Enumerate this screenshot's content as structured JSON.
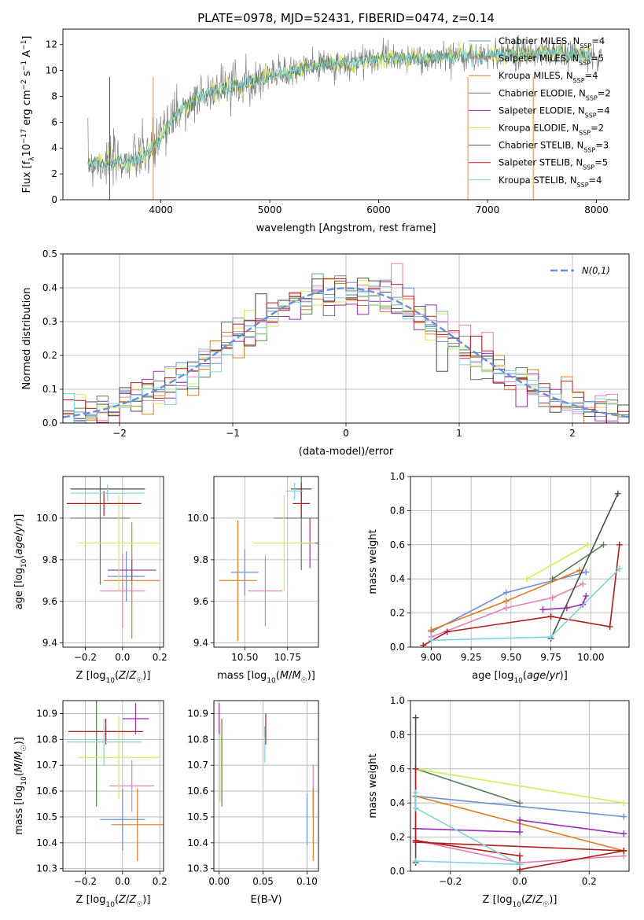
{
  "colors": {
    "Chabrier MILES": "#6a90d6",
    "Salpeter MILES": "#e47fb9",
    "Kroupa MILES": "#e07b25",
    "Chabrier ELODIE": "#5a7f58",
    "Salpeter ELODIE": "#9b2fb3",
    "Kroupa ELODIE": "#d6ea5a",
    "Chabrier STELIB": "#4d4d4d",
    "Salpeter STELIB": "#b11d1d",
    "Kroupa STELIB": "#7fd3dc",
    "normal": "#6a90d6"
  },
  "chart_data": [
    {
      "id": "spectrum",
      "type": "line",
      "title": "PLATE=0978, MJD=52431, FIBERID=0474, z=0.14",
      "xlabel": "wavelength [Angstrom, rest frame]",
      "ylabel": "Flux [f_λ 10^-17 erg cm^-2 s^-1 A^-1]",
      "xlim": [
        3100,
        8300
      ],
      "ylim": [
        0,
        13.2
      ],
      "xticks": [
        4000,
        5000,
        6000,
        7000,
        8000
      ],
      "yticks": [
        0,
        2,
        4,
        6,
        8,
        10,
        12
      ],
      "grid": false,
      "legend": "upper right",
      "series": [
        {
          "name": "Chabrier MILES",
          "nssp": "4"
        },
        {
          "name": "Salpeter MILES",
          "nssp": "5"
        },
        {
          "name": "Kroupa MILES",
          "nssp": "4"
        },
        {
          "name": "Chabrier ELODIE",
          "nssp": "2"
        },
        {
          "name": "Salpeter ELODIE",
          "nssp": "4"
        },
        {
          "name": "Kroupa ELODIE",
          "nssp": "2"
        },
        {
          "name": "Chabrier STELIB",
          "nssp": "3"
        },
        {
          "name": "Salpeter STELIB",
          "nssp": "5"
        },
        {
          "name": "Kroupa STELIB",
          "nssp": "4"
        }
      ],
      "data_trend": {
        "wavelength": [
          3300,
          3500,
          3700,
          3850,
          4000,
          4100,
          4300,
          4500,
          4700,
          4900,
          5100,
          5300,
          5500,
          5700,
          5900,
          6100,
          6300,
          6500,
          6700,
          6900,
          7100,
          7300,
          7500,
          7700,
          7900,
          8050
        ],
        "flux": [
          2.8,
          2.9,
          3.0,
          3.4,
          4.8,
          6.2,
          7.8,
          8.4,
          8.8,
          9.3,
          9.7,
          10.1,
          10.5,
          10.6,
          10.8,
          10.9,
          10.9,
          11.0,
          11.1,
          11.1,
          11.2,
          11.2,
          11.4,
          11.3,
          11.2,
          11.0
        ]
      }
    },
    {
      "id": "residuals",
      "type": "line",
      "xlabel": "(data-model)/error",
      "ylabel": "Normed distribution",
      "xlim": [
        -2.5,
        2.5
      ],
      "ylim": [
        0,
        0.5
      ],
      "xticks": [
        -2,
        -1,
        0,
        1,
        2
      ],
      "yticks": [
        0.0,
        0.1,
        0.2,
        0.3,
        0.4,
        0.5
      ],
      "grid": true,
      "legend": "upper right",
      "normal_label": "N(0,1)",
      "bin_width": 0.1,
      "bin_start": -2.5
    },
    {
      "id": "age-vs-Z",
      "type": "scatter",
      "xlabel": "Z [log10(Z/Z☉)]",
      "ylabel": "age [log10(age/yr)]",
      "xlim": [
        -0.32,
        0.22
      ],
      "ylim": [
        9.38,
        10.2
      ],
      "xticks": [
        -0.2,
        0.0,
        0.2
      ],
      "yticks": [
        9.4,
        9.6,
        9.8,
        10.0
      ],
      "grid": true,
      "points": [
        {
          "name": "Chabrier MILES",
          "x": 0.02,
          "xerr": 0.1,
          "y": 9.72,
          "yerr": 0.12
        },
        {
          "name": "Salpeter MILES",
          "x": 0.0,
          "xerr": 0.12,
          "y": 9.65,
          "yerr": 0.18
        },
        {
          "name": "Kroupa MILES",
          "x": 0.05,
          "xerr": 0.15,
          "y": 9.7,
          "yerr": 0.28
        },
        {
          "name": "Chabrier ELODIE",
          "x": -0.12,
          "xerr": 0.16,
          "y": 10.0,
          "yerr": 0.32
        },
        {
          "name": "Salpeter ELODIE",
          "x": 0.05,
          "xerr": 0.13,
          "y": 9.75,
          "yerr": 0.05
        },
        {
          "name": "Kroupa ELODIE",
          "x": -0.02,
          "xerr": 0.22,
          "y": 9.88,
          "yerr": 0.23
        },
        {
          "name": "Chabrier STELIB",
          "x": -0.08,
          "xerr": 0.2,
          "y": 10.14,
          "yerr": 0.02
        },
        {
          "name": "Salpeter STELIB",
          "x": -0.1,
          "xerr": 0.2,
          "y": 10.07,
          "yerr": 0.06
        },
        {
          "name": "Kroupa STELIB",
          "x": -0.08,
          "xerr": 0.2,
          "y": 10.12,
          "yerr": 0.04
        }
      ]
    },
    {
      "id": "age-vs-mass",
      "type": "scatter",
      "xlabel": "mass [log10(M/M☉)]",
      "ylabel": "",
      "xlim": [
        10.32,
        10.93
      ],
      "ylim": [
        9.38,
        10.2
      ],
      "xticks": [
        10.5,
        10.75
      ],
      "yticks": [
        9.4,
        9.6,
        9.8,
        10.0
      ],
      "grid": true,
      "points": [
        {
          "name": "Chabrier MILES",
          "x": 10.5,
          "xerr": 0.08,
          "y": 9.74,
          "yerr": 0.11
        },
        {
          "name": "Salpeter MILES",
          "x": 10.62,
          "xerr": 0.1,
          "y": 9.65,
          "yerr": 0.17
        },
        {
          "name": "Kroupa MILES",
          "x": 10.46,
          "xerr": 0.11,
          "y": 9.7,
          "yerr": 0.29
        },
        {
          "name": "Chabrier ELODIE",
          "x": 10.83,
          "xerr": 0.16,
          "y": 10.0,
          "yerr": 0.25
        },
        {
          "name": "Salpeter ELODIE",
          "x": 10.88,
          "xerr": 0.05,
          "y": 9.88,
          "yerr": 0.12
        },
        {
          "name": "Kroupa ELODIE",
          "x": 10.73,
          "xerr": 0.18,
          "y": 9.88,
          "yerr": 0.23
        },
        {
          "name": "Chabrier STELIB",
          "x": 10.83,
          "xerr": 0.06,
          "y": 10.14,
          "yerr": 0.03
        },
        {
          "name": "Salpeter STELIB",
          "x": 10.83,
          "xerr": 0.05,
          "y": 10.07,
          "yerr": 0.07
        },
        {
          "name": "Kroupa STELIB",
          "x": 10.79,
          "xerr": 0.05,
          "y": 10.13,
          "yerr": 0.04
        }
      ]
    },
    {
      "id": "weight-vs-age",
      "type": "line",
      "xlabel": "age [log10(age/yr)]",
      "ylabel": "mass weight",
      "xlim": [
        8.87,
        10.24
      ],
      "ylim": [
        0,
        1.0
      ],
      "xticks": [
        9.0,
        9.25,
        9.5,
        9.75,
        10.0
      ],
      "yticks": [
        0.0,
        0.2,
        0.4,
        0.6,
        0.8,
        1.0
      ],
      "grid": true,
      "series": [
        {
          "name": "Chabrier MILES",
          "x": [
            9.0,
            9.47,
            9.97
          ],
          "y": [
            0.09,
            0.32,
            0.44
          ]
        },
        {
          "name": "Salpeter MILES",
          "x": [
            9.0,
            9.47,
            9.76,
            9.95
          ],
          "y": [
            0.06,
            0.23,
            0.29,
            0.37
          ]
        },
        {
          "name": "Kroupa MILES",
          "x": [
            9.0,
            9.47,
            9.93
          ],
          "y": [
            0.1,
            0.27,
            0.45
          ]
        },
        {
          "name": "Chabrier ELODIE",
          "x": [
            9.76,
            10.08
          ],
          "y": [
            0.4,
            0.6
          ]
        },
        {
          "name": "Salpeter ELODIE",
          "x": [
            9.7,
            9.85,
            9.95,
            9.97
          ],
          "y": [
            0.22,
            0.23,
            0.25,
            0.3
          ]
        },
        {
          "name": "Kroupa ELODIE",
          "x": [
            9.6,
            9.98
          ],
          "y": [
            0.4,
            0.6
          ]
        },
        {
          "name": "Chabrier STELIB",
          "x": [
            9.75,
            10.17
          ],
          "y": [
            0.05,
            0.9
          ]
        },
        {
          "name": "Salpeter STELIB",
          "x": [
            8.95,
            9.1,
            9.75,
            10.12,
            10.18
          ],
          "y": [
            0.01,
            0.09,
            0.18,
            0.12,
            0.6
          ]
        },
        {
          "name": "Kroupa STELIB",
          "x": [
            9.0,
            9.75,
            10.18
          ],
          "y": [
            0.04,
            0.06,
            0.46
          ]
        }
      ]
    },
    {
      "id": "mass-vs-Z",
      "type": "scatter",
      "xlabel": "Z [log10(Z/Z☉)]",
      "ylabel": "mass [log10(M/M☉)]",
      "xlim": [
        -0.32,
        0.22
      ],
      "ylim": [
        10.29,
        10.95
      ],
      "xticks": [
        -0.2,
        0.0,
        0.2
      ],
      "yticks": [
        10.3,
        10.4,
        10.5,
        10.6,
        10.7,
        10.8,
        10.9
      ],
      "grid": true,
      "points": [
        {
          "name": "Chabrier MILES",
          "x": 0.0,
          "xerr": 0.12,
          "y": 10.49,
          "yerr": 0.12
        },
        {
          "name": "Salpeter MILES",
          "x": 0.05,
          "xerr": 0.12,
          "y": 10.62,
          "yerr": 0.1
        },
        {
          "name": "Kroupa MILES",
          "x": 0.08,
          "xerr": 0.14,
          "y": 10.47,
          "yerr": 0.14
        },
        {
          "name": "Chabrier ELODIE",
          "x": -0.14,
          "xerr": 0.15,
          "y": 10.83,
          "yerr": 0.29
        },
        {
          "name": "Salpeter ELODIE",
          "x": 0.07,
          "xerr": 0.07,
          "y": 10.88,
          "yerr": 0.06
        },
        {
          "name": "Kroupa ELODIE",
          "x": -0.02,
          "xerr": 0.22,
          "y": 10.73,
          "yerr": 0.16
        },
        {
          "name": "Chabrier STELIB",
          "x": -0.09,
          "xerr": 0.2,
          "y": 10.83,
          "yerr": 0.02
        },
        {
          "name": "Salpeter STELIB",
          "x": -0.09,
          "xerr": 0.2,
          "y": 10.83,
          "yerr": 0.05
        },
        {
          "name": "Kroupa STELIB",
          "x": -0.1,
          "xerr": 0.2,
          "y": 10.79,
          "yerr": 0.09
        }
      ]
    },
    {
      "id": "mass-vs-EBV",
      "type": "scatter",
      "xlabel": "E(B-V)",
      "ylabel": "",
      "xlim": [
        -0.006,
        0.113
      ],
      "ylim": [
        10.29,
        10.95
      ],
      "xticks": [
        0.0,
        0.05,
        0.1
      ],
      "yticks": [
        10.3,
        10.4,
        10.5,
        10.6,
        10.7,
        10.8,
        10.9
      ],
      "grid": true,
      "points": [
        {
          "name": "Chabrier MILES",
          "x": 0.1,
          "xerr": 0.0,
          "y": 10.49,
          "yerr": 0.1
        },
        {
          "name": "Salpeter MILES",
          "x": 0.107,
          "xerr": 0.0,
          "y": 10.6,
          "yerr": 0.1
        },
        {
          "name": "Kroupa MILES",
          "x": 0.107,
          "xerr": 0.0,
          "y": 10.47,
          "yerr": 0.14
        },
        {
          "name": "Chabrier ELODIE",
          "x": 0.003,
          "xerr": 0.0,
          "y": 10.71,
          "yerr": 0.17
        },
        {
          "name": "Salpeter ELODIE",
          "x": 0.0,
          "xerr": 0.0,
          "y": 10.88,
          "yerr": 0.06
        },
        {
          "name": "Kroupa ELODIE",
          "x": 0.001,
          "xerr": 0.0,
          "y": 10.72,
          "yerr": 0.16
        },
        {
          "name": "Chabrier STELIB",
          "x": 0.052,
          "xerr": 0.0,
          "y": 10.83,
          "yerr": 0.02
        },
        {
          "name": "Salpeter STELIB",
          "x": 0.053,
          "xerr": 0.0,
          "y": 10.84,
          "yerr": 0.06
        },
        {
          "name": "Kroupa STELIB",
          "x": 0.052,
          "xerr": 0.0,
          "y": 10.78,
          "yerr": 0.07
        }
      ]
    },
    {
      "id": "weight-vs-Z",
      "type": "line",
      "xlabel": "Z [log10(Z/Z☉)]",
      "ylabel": "mass weight",
      "xlim": [
        -0.315,
        0.315
      ],
      "ylim": [
        0,
        1.0
      ],
      "xticks": [
        -0.2,
        0.0,
        0.2
      ],
      "yticks": [
        0.0,
        0.2,
        0.4,
        0.6,
        0.8,
        1.0
      ],
      "grid": true,
      "series": [
        {
          "name": "Chabrier MILES",
          "x": [
            -0.3,
            0.3
          ],
          "y": [
            0.44,
            0.32
          ]
        },
        {
          "name": "Salpeter MILES",
          "x": [
            -0.3,
            0.0,
            0.3
          ],
          "y": [
            0.18,
            0.05,
            0.09
          ]
        },
        {
          "name": "Kroupa MILES",
          "x": [
            -0.3,
            0.3
          ],
          "y": [
            0.44,
            0.12
          ]
        },
        {
          "name": "Chabrier ELODIE",
          "x": [
            -0.3,
            0.0
          ],
          "y": [
            0.6,
            0.4
          ]
        },
        {
          "name": "Salpeter ELODIE",
          "x": [
            -0.3,
            0.0,
            0.0,
            0.3
          ],
          "y": [
            0.25,
            0.23,
            0.3,
            0.22
          ]
        },
        {
          "name": "Kroupa ELODIE",
          "x": [
            -0.3,
            0.3
          ],
          "y": [
            0.6,
            0.4
          ]
        },
        {
          "name": "Chabrier STELIB",
          "x": [
            -0.3,
            -0.3
          ],
          "y": [
            0.05,
            0.9
          ]
        },
        {
          "name": "Salpeter STELIB",
          "x": [
            -0.3,
            0.0,
            0.0,
            0.3,
            0.3,
            -0.3,
            -0.3
          ],
          "y": [
            0.18,
            0.09,
            0.01,
            0.12,
            0.12,
            0.17,
            0.6
          ]
        },
        {
          "name": "Kroupa STELIB",
          "x": [
            -0.3,
            0.0,
            -0.3,
            -0.3
          ],
          "y": [
            0.06,
            0.04,
            0.37,
            0.46
          ]
        }
      ]
    }
  ]
}
